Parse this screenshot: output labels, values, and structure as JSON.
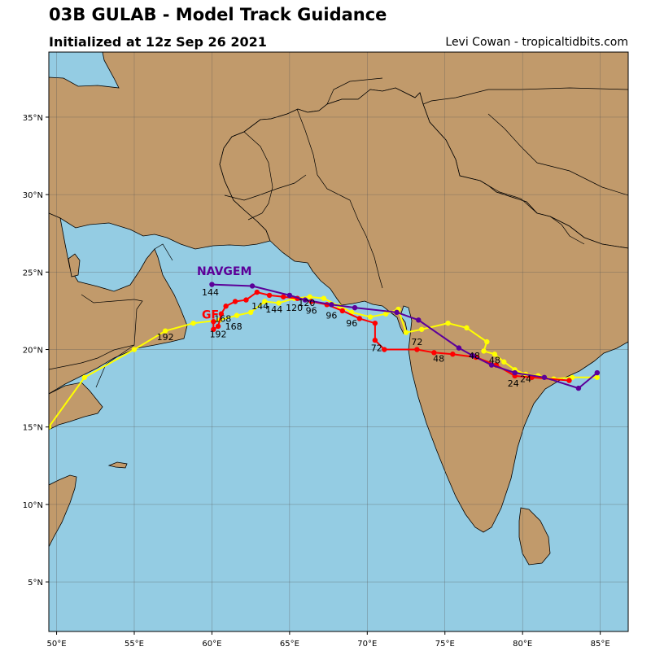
{
  "header": {
    "title": "03B GULAB - Model Track Guidance",
    "subtitle": "Initialized at 12z Sep 26 2021",
    "credit": "Levi Cowan - tropicaltidbits.com"
  },
  "colors": {
    "ocean": "#94cce3",
    "land": "#c19a6b",
    "border": "#000000",
    "grid": "#555555"
  },
  "map_extent": {
    "lon": [
      49.5,
      86.8
    ],
    "lat": [
      1.8,
      39.2
    ]
  },
  "axes": {
    "lon_ticks": [
      {
        "value": 50,
        "label": "50°E"
      },
      {
        "value": 55,
        "label": "55°E"
      },
      {
        "value": 60,
        "label": "60°E"
      },
      {
        "value": 65,
        "label": "65°E"
      },
      {
        "value": 70,
        "label": "70°E"
      },
      {
        "value": 75,
        "label": "75°E"
      },
      {
        "value": 80,
        "label": "80°E"
      },
      {
        "value": 85,
        "label": "85°E"
      }
    ],
    "lat_ticks": [
      {
        "value": 5,
        "label": "5°N"
      },
      {
        "value": 10,
        "label": "10°N"
      },
      {
        "value": 15,
        "label": "15°N"
      },
      {
        "value": 20,
        "label": "20°N"
      },
      {
        "value": 25,
        "label": "25°N"
      },
      {
        "value": 30,
        "label": "30°N"
      },
      {
        "value": 35,
        "label": "35°N"
      }
    ]
  },
  "tracks": [
    {
      "name": "",
      "color": "#ffff00",
      "points": [
        [
          84.8,
          18.2
        ],
        [
          83.2,
          18.2
        ],
        [
          82.0,
          18.1
        ],
        [
          81.0,
          18.3
        ],
        [
          80.2,
          18.4
        ],
        [
          79.5,
          18.7
        ],
        [
          78.8,
          19.2
        ],
        [
          78.2,
          19.7
        ],
        [
          77.5,
          19.9
        ],
        [
          77.7,
          20.5
        ],
        [
          76.4,
          21.4
        ],
        [
          75.2,
          21.7
        ],
        [
          73.5,
          21.3
        ],
        [
          72.5,
          21.1
        ],
        [
          72.0,
          22.6
        ],
        [
          71.2,
          22.3
        ],
        [
          70.2,
          22.1
        ],
        [
          69.0,
          22.4
        ],
        [
          68.2,
          22.8
        ],
        [
          67.2,
          23.3
        ],
        [
          66.3,
          23.4
        ],
        [
          65.3,
          23.3
        ],
        [
          64.3,
          23.0
        ],
        [
          63.4,
          23.1
        ],
        [
          62.5,
          22.4
        ],
        [
          61.6,
          22.2
        ],
        [
          60.5,
          21.9
        ],
        [
          58.8,
          21.7
        ],
        [
          57.0,
          21.2
        ],
        [
          55.0,
          20.0
        ],
        [
          51.8,
          18.2
        ],
        [
          49.5,
          15.0
        ]
      ]
    },
    {
      "name": "",
      "color": "#ff0000",
      "points": [
        [
          83.0,
          18.0
        ],
        [
          80.6,
          18.2
        ],
        [
          79.5,
          18.3
        ],
        [
          78.3,
          19.0
        ],
        [
          77.0,
          19.5
        ],
        [
          75.5,
          19.7
        ],
        [
          74.3,
          19.8
        ],
        [
          73.2,
          20.0
        ],
        [
          71.1,
          20.0
        ],
        [
          70.5,
          20.6
        ],
        [
          70.5,
          21.7
        ],
        [
          69.5,
          22.0
        ],
        [
          68.4,
          22.5
        ],
        [
          67.4,
          22.9
        ],
        [
          66.4,
          23.1
        ],
        [
          65.5,
          23.3
        ],
        [
          64.6,
          23.4
        ],
        [
          63.7,
          23.5
        ],
        [
          62.9,
          23.7
        ],
        [
          62.2,
          23.2
        ],
        [
          61.5,
          23.1
        ],
        [
          60.9,
          22.8
        ],
        [
          60.6,
          22.3
        ],
        [
          60.4,
          21.5
        ],
        [
          60.1,
          21.3
        ],
        [
          60.1,
          21.8
        ]
      ]
    },
    {
      "name": "NAVGEM",
      "color": "#5c0099",
      "points": [
        [
          84.8,
          18.5
        ],
        [
          83.6,
          17.5
        ],
        [
          81.4,
          18.2
        ],
        [
          79.5,
          18.5
        ],
        [
          78.0,
          19.0
        ],
        [
          76.8,
          19.6
        ],
        [
          75.9,
          20.1
        ],
        [
          73.3,
          21.9
        ],
        [
          71.9,
          22.4
        ],
        [
          69.2,
          22.7
        ],
        [
          67.7,
          22.9
        ],
        [
          66.0,
          23.2
        ],
        [
          65.0,
          23.5
        ],
        [
          62.6,
          24.1
        ],
        [
          60.0,
          24.2
        ]
      ]
    }
  ],
  "track_labels": [
    {
      "lon": 79.4,
      "lat": 17.6,
      "text": "24",
      "color": "#000000"
    },
    {
      "lon": 80.2,
      "lat": 17.9,
      "text": "24",
      "color": "#000000"
    },
    {
      "lon": 74.6,
      "lat": 19.2,
      "text": "48",
      "color": "#000000"
    },
    {
      "lon": 76.9,
      "lat": 19.4,
      "text": "48",
      "color": "#000000"
    },
    {
      "lon": 78.2,
      "lat": 19.1,
      "text": "48",
      "color": "#000000"
    },
    {
      "lon": 70.6,
      "lat": 19.9,
      "text": "72",
      "color": "#000000"
    },
    {
      "lon": 73.2,
      "lat": 20.3,
      "text": "72",
      "color": "#000000"
    },
    {
      "lon": 67.7,
      "lat": 22.0,
      "text": "96",
      "color": "#000000"
    },
    {
      "lon": 69.0,
      "lat": 21.5,
      "text": "96",
      "color": "#000000"
    },
    {
      "lon": 66.4,
      "lat": 22.3,
      "text": "96",
      "color": "#000000"
    },
    {
      "lon": 65.3,
      "lat": 22.5,
      "text": "120",
      "color": "#000000"
    },
    {
      "lon": 66.1,
      "lat": 22.8,
      "text": "120",
      "color": "#000000"
    },
    {
      "lon": 63.1,
      "lat": 22.6,
      "text": "144",
      "color": "#000000"
    },
    {
      "lon": 64.0,
      "lat": 22.4,
      "text": "144",
      "color": "#000000"
    },
    {
      "lon": 59.9,
      "lat": 23.5,
      "text": "144",
      "color": "#000000"
    },
    {
      "lon": 60.7,
      "lat": 21.8,
      "text": "168",
      "color": "#000000"
    },
    {
      "lon": 61.4,
      "lat": 21.3,
      "text": "168",
      "color": "#000000"
    },
    {
      "lon": 60.4,
      "lat": 20.8,
      "text": "192",
      "color": "#000000"
    },
    {
      "lon": 57.0,
      "lat": 20.6,
      "text": "192",
      "color": "#000000"
    }
  ],
  "model_labels": [
    {
      "lon": 60.8,
      "lat": 24.8,
      "text": "NAVGEM",
      "color": "#5c0099"
    },
    {
      "lon": 59.9,
      "lat": 22.0,
      "text": "GF",
      "color": "#ff0000"
    }
  ]
}
